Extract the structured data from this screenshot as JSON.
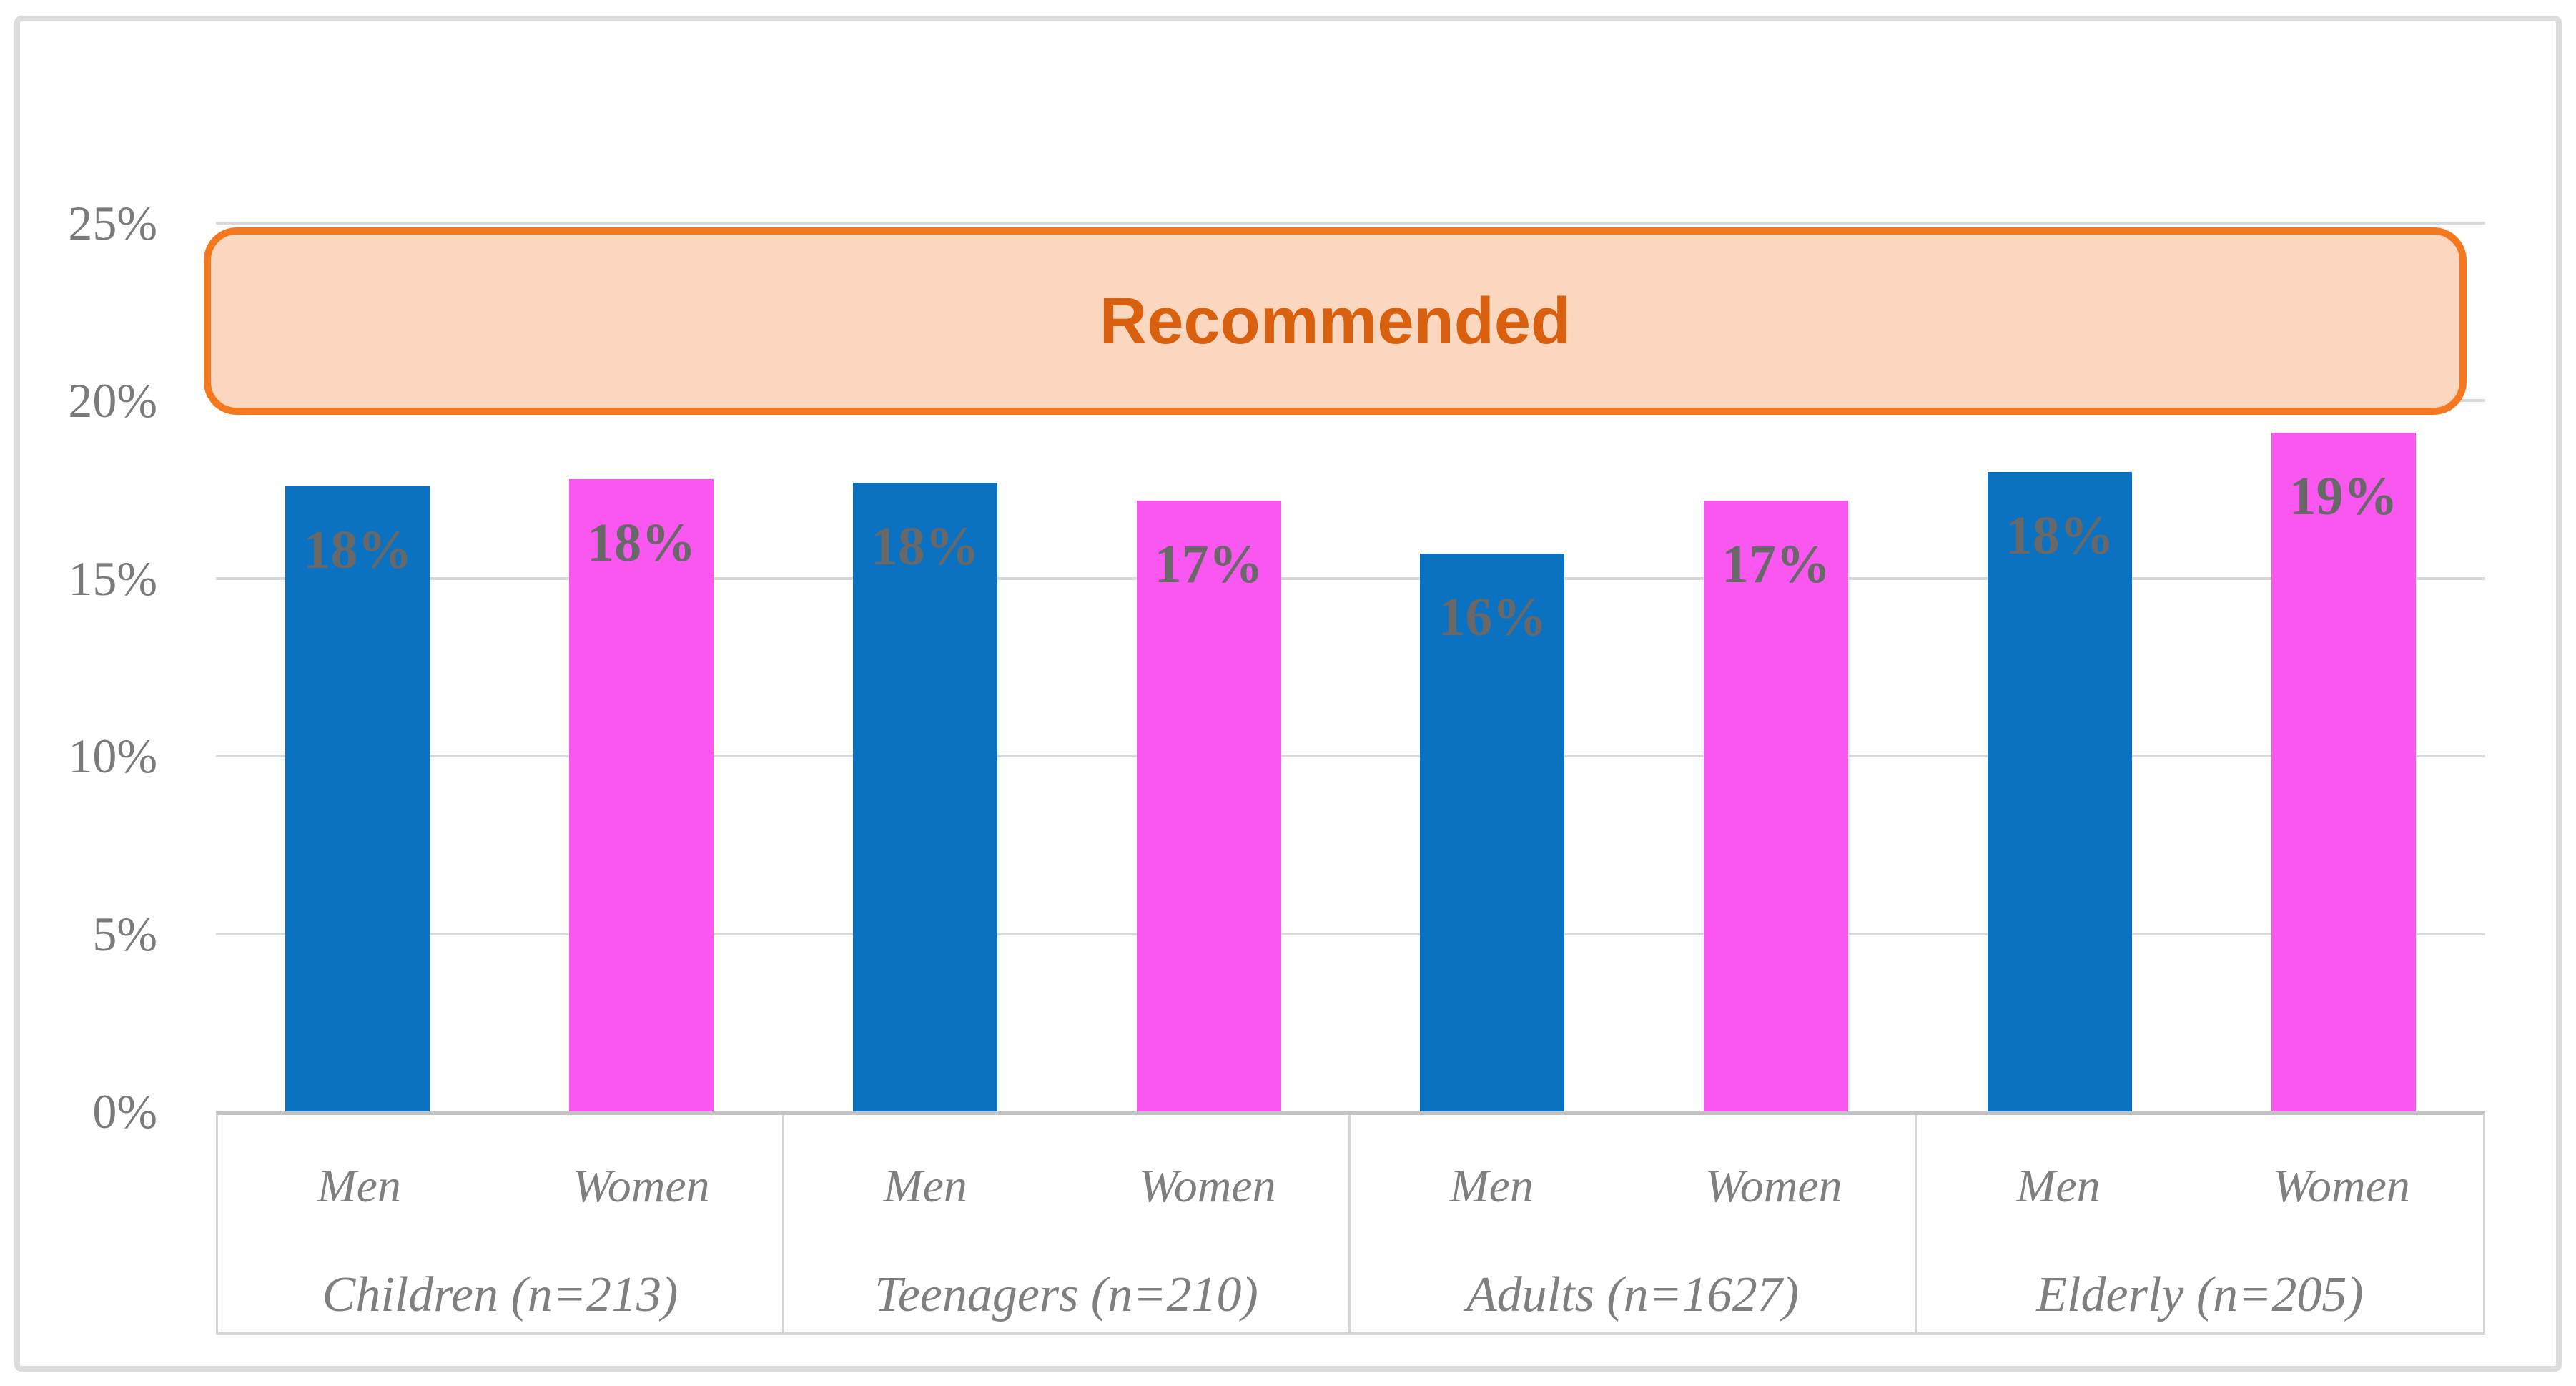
{
  "figure": {
    "background": "#FFFFFF",
    "border_color": "#DCDCDC"
  },
  "chart_data": {
    "type": "bar",
    "title": "",
    "xlabel": "",
    "ylabel": "",
    "ylim": [
      0,
      25
    ],
    "grid": true,
    "gridline_color": "#D9D9D9",
    "axis_line_color": "#C3C3C3",
    "tick_label_color": "#7A7A7A",
    "bar_label_color": "#686868",
    "x_sublabel_color": "#7F7F7F",
    "categories": [
      "Children (n=213)",
      "Teenagers (n=210)",
      "Adults (n=1627)",
      "Elderly (n=205)"
    ],
    "x_sublabels": [
      "Men",
      "Women"
    ],
    "yticks": [
      {
        "value": 0,
        "label": "0%"
      },
      {
        "value": 5,
        "label": "5%"
      },
      {
        "value": 10,
        "label": "10%"
      },
      {
        "value": 15,
        "label": "15%"
      },
      {
        "value": 20,
        "label": "20%"
      },
      {
        "value": 25,
        "label": "25%"
      }
    ],
    "series": [
      {
        "name": "Men",
        "color": "#0B72C1",
        "values": [
          17.6,
          17.7,
          15.7,
          18.0
        ],
        "labels": [
          "18%",
          "18%",
          "16%",
          "18%"
        ]
      },
      {
        "name": "Women",
        "color": "#F957F0",
        "values": [
          17.8,
          17.2,
          17.2,
          19.1
        ],
        "labels": [
          "18%",
          "17%",
          "17%",
          "19%"
        ]
      }
    ],
    "band": {
      "label": "Recommended",
      "from": 20,
      "to": 25,
      "fill": "#FCD7C0",
      "border_color": "#F4791E",
      "text_color": "#D9600F"
    },
    "legend": "none"
  }
}
